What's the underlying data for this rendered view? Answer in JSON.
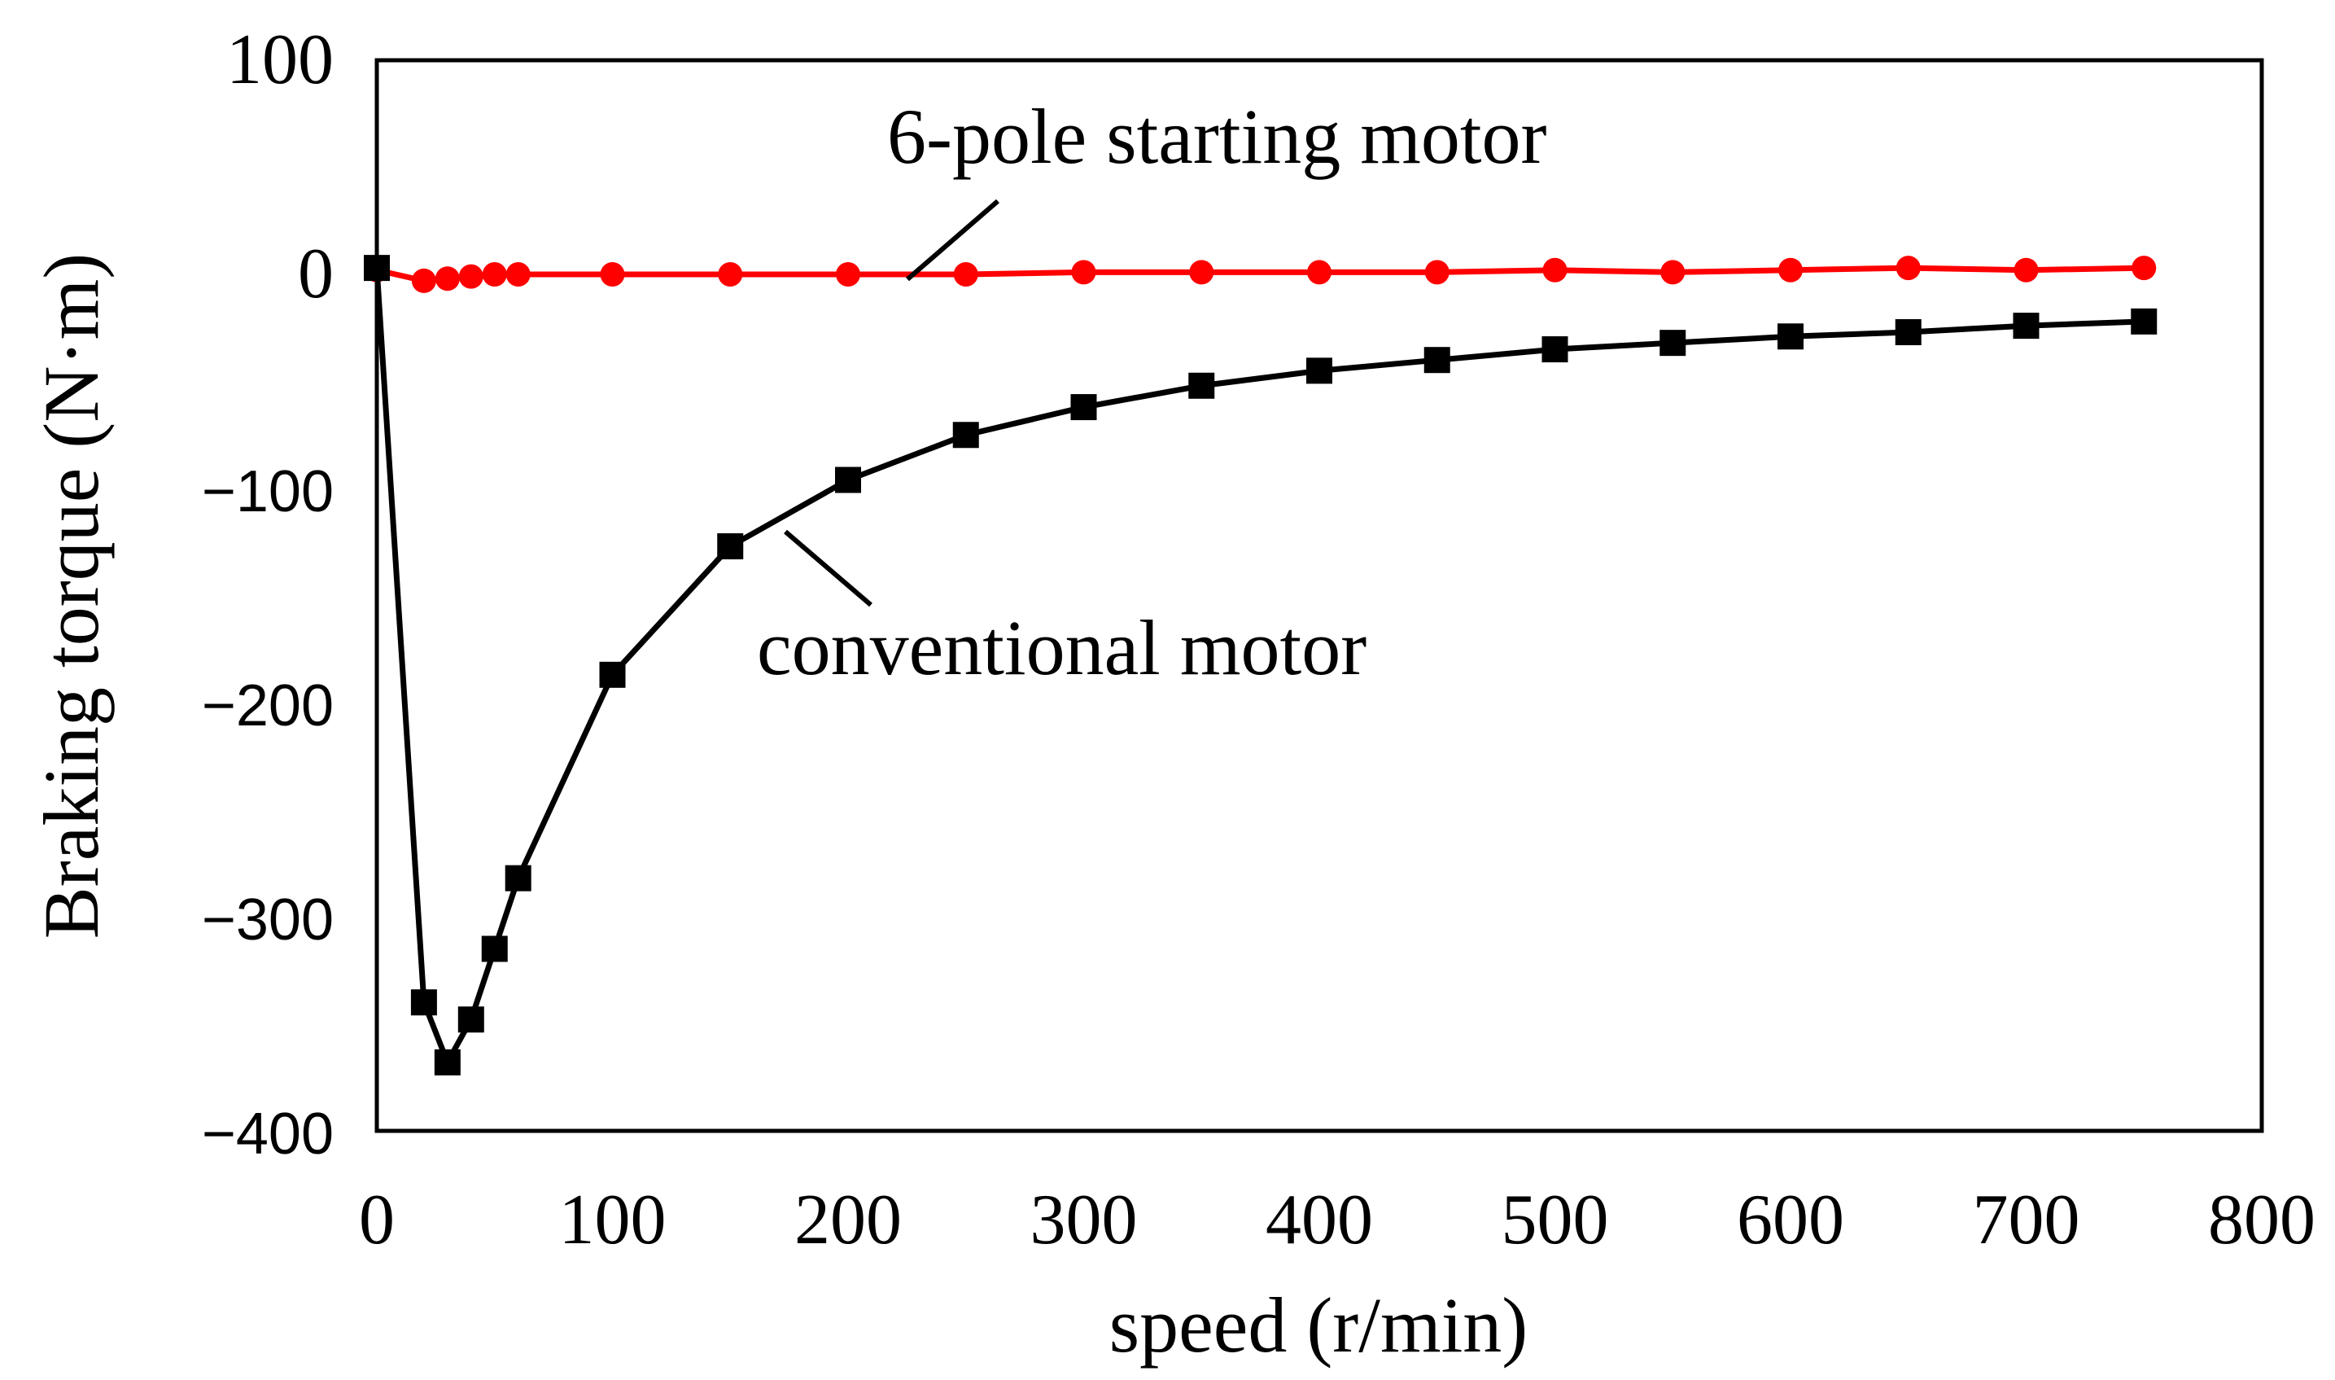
{
  "chart_data": {
    "type": "line",
    "title": "",
    "xlabel": "speed (r/min)",
    "ylabel": "Braking torque (N·m)",
    "xlim": [
      0,
      800
    ],
    "ylim": [
      -400,
      100
    ],
    "xticks": [
      0,
      100,
      200,
      300,
      400,
      500,
      600,
      700,
      800
    ],
    "yticks": [
      100,
      0,
      -100,
      -200,
      -300,
      -400
    ],
    "xtick_labels": [
      "0",
      "100",
      "200",
      "300",
      "400",
      "500",
      "600",
      "700",
      "800"
    ],
    "ytick_labels": [
      "100",
      "0",
      "−100",
      "−200",
      "−300",
      "−400"
    ],
    "grid": false,
    "series": [
      {
        "name": "6-pole starting motor",
        "color": "#ff0000",
        "marker": "circle",
        "x": [
          0,
          20,
          30,
          40,
          50,
          60,
          100,
          150,
          200,
          250,
          300,
          350,
          400,
          450,
          500,
          550,
          600,
          650,
          700,
          750
        ],
        "y": [
          2,
          -3,
          -2,
          -1,
          0,
          0,
          0,
          0,
          0,
          0,
          1,
          1,
          1,
          1,
          2,
          1,
          2,
          3,
          2,
          3
        ]
      },
      {
        "name": "conventional motor",
        "color": "#000000",
        "marker": "square",
        "x": [
          0,
          20,
          30,
          40,
          50,
          60,
          100,
          150,
          200,
          250,
          300,
          350,
          400,
          450,
          500,
          550,
          600,
          650,
          700,
          750
        ],
        "y": [
          3,
          -340,
          -368,
          -348,
          -315,
          -282,
          -187,
          -127,
          -96,
          -75,
          -62,
          -52,
          -45,
          -40,
          -35,
          -32,
          -29,
          -27,
          -24,
          -22
        ]
      }
    ],
    "annotations": [
      {
        "text": "6-pole starting motor",
        "series": "6-pole starting motor"
      },
      {
        "text": "conventional motor",
        "series": "conventional motor"
      }
    ]
  }
}
